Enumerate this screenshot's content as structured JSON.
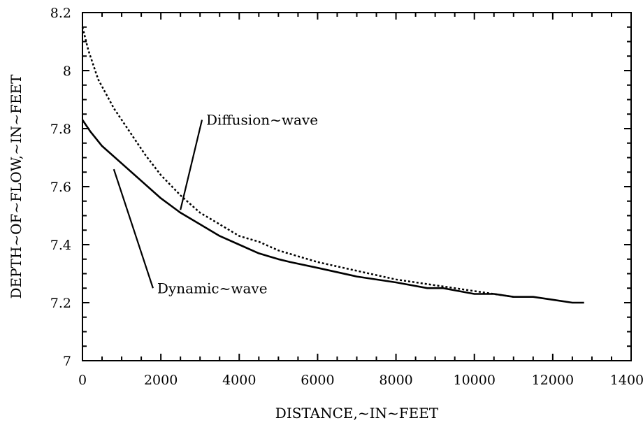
{
  "chart_data": {
    "type": "line",
    "title": "",
    "xlabel": "DISTANCE,~IN~FEET",
    "ylabel": "DEPTH~OF~FLOW,~IN~FEET",
    "xlim": [
      0,
      14000
    ],
    "ylim": [
      7,
      8.2
    ],
    "xticks": [
      0,
      2000,
      4000,
      6000,
      8000,
      10000,
      12000,
      14000
    ],
    "yticks": [
      7,
      7.2,
      7.4,
      7.6,
      7.8,
      8,
      8.2
    ],
    "xtick_labels": [
      "0",
      "2000",
      "4000",
      "6000",
      "8000",
      "10000",
      "12000",
      "14000"
    ],
    "ytick_labels": [
      "7",
      "7.2",
      "7.4",
      "7.6",
      "7.8",
      "8",
      "8.2"
    ],
    "grid": false,
    "series": [
      {
        "key": "dynamic",
        "style": "solid",
        "x": [
          0,
          200,
          500,
          1000,
          1500,
          2000,
          2500,
          3000,
          3500,
          4000,
          4500,
          5000,
          5300,
          6000,
          7000,
          8000,
          8800,
          9200,
          10000,
          10500,
          11000,
          11500,
          12000,
          12500,
          12800
        ],
        "y": [
          7.83,
          7.79,
          7.74,
          7.68,
          7.62,
          7.56,
          7.51,
          7.47,
          7.43,
          7.4,
          7.37,
          7.35,
          7.34,
          7.32,
          7.29,
          7.27,
          7.25,
          7.25,
          7.23,
          7.23,
          7.22,
          7.22,
          7.21,
          7.2,
          7.2
        ]
      },
      {
        "key": "diffusion",
        "style": "dotted",
        "x": [
          0,
          150,
          400,
          800,
          1200,
          1600,
          2000,
          2500,
          3000,
          3500,
          4000,
          4500,
          5000,
          6000,
          7000,
          8000,
          9000,
          10000,
          11000
        ],
        "y": [
          8.15,
          8.07,
          7.97,
          7.87,
          7.79,
          7.71,
          7.64,
          7.57,
          7.51,
          7.47,
          7.43,
          7.41,
          7.38,
          7.34,
          7.31,
          7.28,
          7.26,
          7.24,
          7.22
        ]
      }
    ],
    "annotations": [
      {
        "text": "Diffusion~wave",
        "point_x": 2500,
        "point_y": 7.52,
        "label_x": 3050,
        "label_y": 7.83
      },
      {
        "text": "Dynamic~wave",
        "point_x": 800,
        "point_y": 7.66,
        "label_x": 1800,
        "label_y": 7.25
      }
    ]
  }
}
